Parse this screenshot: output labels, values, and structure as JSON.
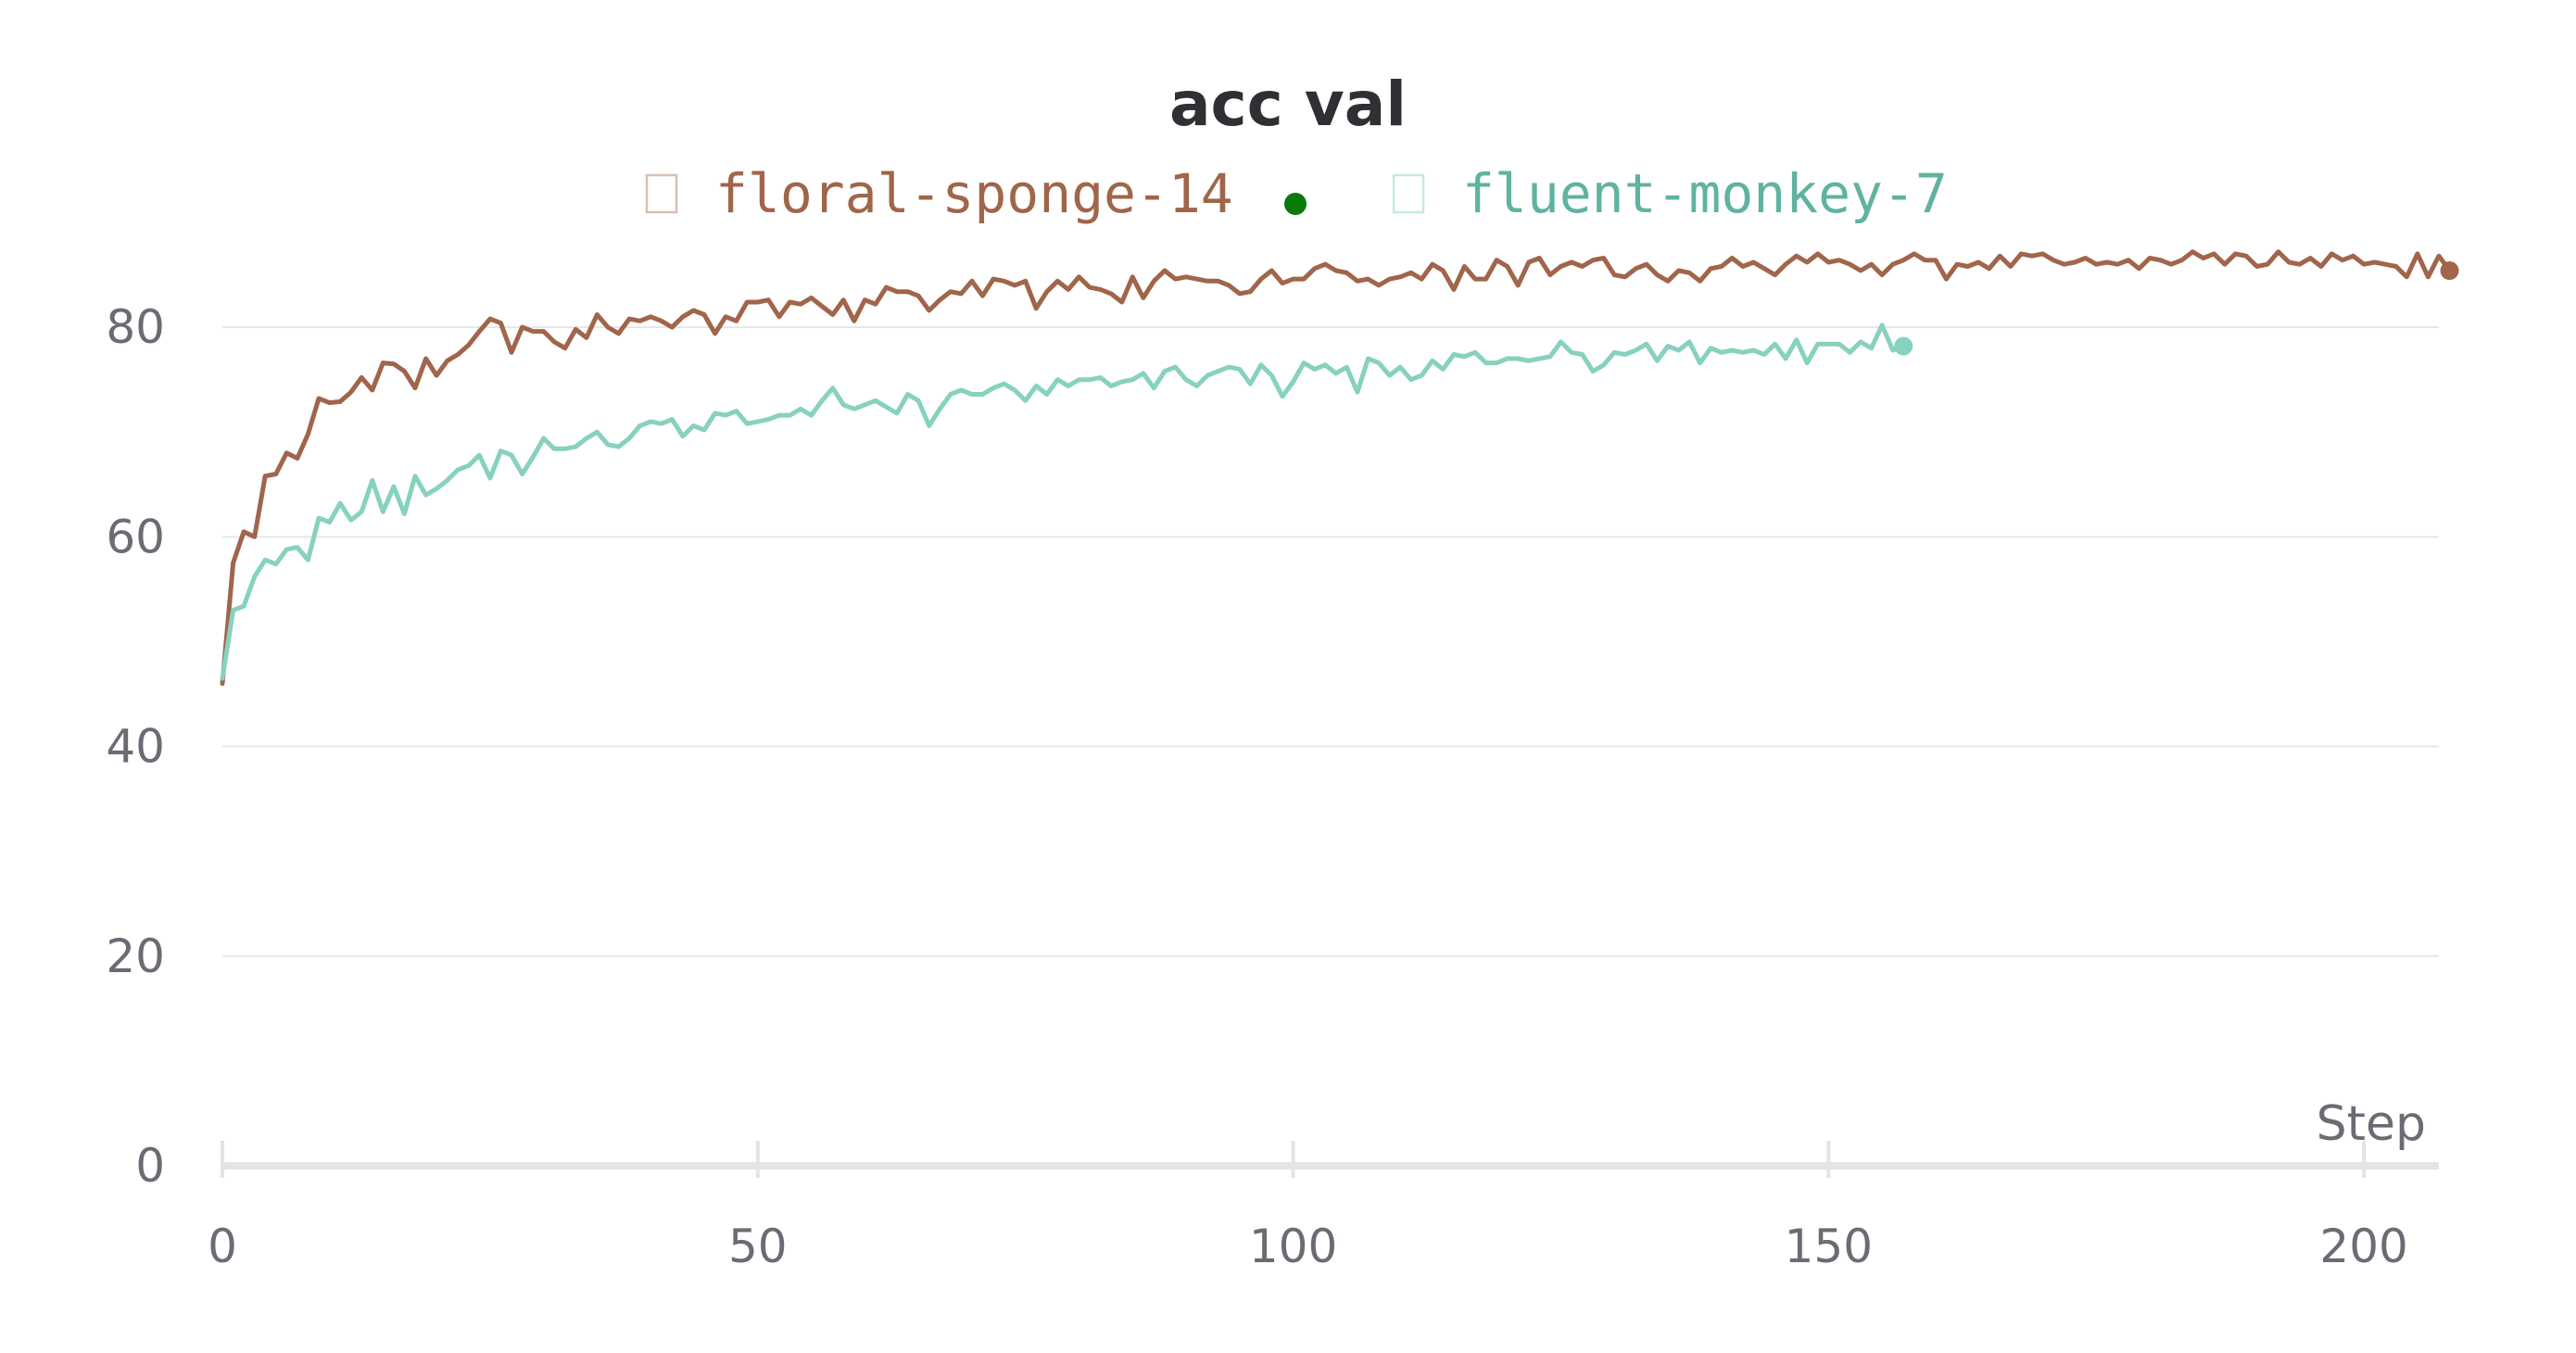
{
  "chart_data": {
    "type": "line",
    "title": "acc val",
    "xlabel": "Step",
    "ylabel": "",
    "xlim": [
      0,
      207
    ],
    "ylim": [
      0,
      90
    ],
    "xticks": [
      0,
      50,
      100,
      150,
      200
    ],
    "yticks": [
      0,
      20,
      40,
      60,
      80
    ],
    "grid": true,
    "legend_position": "top-center",
    "series": [
      {
        "name": "floral-sponge-14",
        "color": "#a0654a",
        "marker_color": "#0a7a0a",
        "x_start": 0,
        "x_step": 1,
        "values": [
          46.0,
          57.5,
          60.5,
          60.0,
          65.8,
          66.0,
          68.0,
          67.5,
          69.8,
          73.2,
          72.8,
          72.9,
          73.8,
          75.2,
          74.0,
          76.6,
          76.5,
          75.8,
          74.2,
          77.0,
          75.4,
          76.8,
          77.4,
          78.3,
          79.6,
          80.8,
          80.4,
          77.6,
          80.0,
          79.6,
          79.6,
          78.6,
          78.0,
          79.8,
          79.0,
          81.2,
          80.0,
          79.4,
          80.8,
          80.6,
          81.0,
          80.6,
          80.0,
          81.0,
          81.6,
          81.2,
          79.4,
          81.0,
          80.6,
          82.4,
          82.4,
          82.6,
          81.0,
          82.4,
          82.2,
          82.8,
          82.0,
          81.2,
          82.6,
          80.6,
          82.6,
          82.2,
          83.8,
          83.4,
          83.4,
          83.0,
          81.6,
          82.6,
          83.4,
          83.2,
          84.4,
          83.0,
          84.6,
          84.4,
          84.0,
          84.4,
          81.8,
          83.4,
          84.4,
          83.6,
          84.8,
          83.8,
          83.6,
          83.2,
          82.4,
          84.8,
          82.8,
          84.4,
          85.4,
          84.6,
          84.8,
          84.6,
          84.4,
          84.4,
          84.0,
          83.2,
          83.4,
          84.6,
          85.4,
          84.2,
          84.6,
          84.6,
          85.6,
          86.0,
          85.4,
          85.2,
          84.4,
          84.6,
          84.0,
          84.6,
          84.8,
          85.2,
          84.6,
          86.0,
          85.4,
          83.6,
          85.8,
          84.6,
          84.6,
          86.4,
          85.8,
          84.0,
          86.2,
          86.6,
          85.0,
          85.8,
          86.2,
          85.8,
          86.4,
          86.6,
          85.0,
          84.8,
          85.6,
          86.0,
          85.0,
          84.4,
          85.4,
          85.2,
          84.4,
          85.6,
          85.8,
          86.6,
          85.8,
          86.2,
          85.6,
          85.0,
          86.0,
          86.8,
          86.2,
          87.0,
          86.2,
          86.4,
          86.0,
          85.4,
          86.0,
          85.0,
          86.0,
          86.4,
          87.0,
          86.4,
          86.4,
          84.6,
          86.0,
          85.8,
          86.2,
          85.6,
          86.8,
          85.8,
          87.0,
          86.8,
          87.0,
          86.4,
          86.0,
          86.2,
          86.6,
          86.0,
          86.2,
          86.0,
          86.4,
          85.6,
          86.6,
          86.4,
          86.0,
          86.4,
          87.2,
          86.6,
          87.0,
          86.0,
          87.0,
          86.8,
          85.8,
          86.0,
          87.2,
          86.2,
          86.0,
          86.6,
          85.8,
          87.0,
          86.4,
          86.8,
          86.0,
          86.2,
          86.0,
          85.8,
          84.8,
          87.0,
          84.8,
          86.8,
          85.4
        ]
      },
      {
        "name": "fluent-monkey-7",
        "color": "#87d1bf",
        "x_start": 0,
        "x_step": 1,
        "values": [
          46.5,
          53.0,
          53.4,
          56.2,
          57.8,
          57.4,
          58.8,
          59.0,
          57.8,
          61.8,
          61.4,
          63.2,
          61.6,
          62.4,
          65.4,
          62.4,
          64.8,
          62.2,
          65.8,
          64.0,
          64.6,
          65.4,
          66.4,
          66.8,
          67.8,
          65.6,
          68.2,
          67.8,
          66.0,
          67.6,
          69.4,
          68.4,
          68.4,
          68.6,
          69.4,
          70.0,
          68.8,
          68.6,
          69.4,
          70.6,
          71.0,
          70.8,
          71.2,
          69.6,
          70.6,
          70.2,
          71.8,
          71.6,
          72.0,
          70.8,
          71.0,
          71.2,
          71.6,
          71.6,
          72.2,
          71.6,
          73.0,
          74.2,
          72.6,
          72.2,
          72.6,
          73.0,
          72.4,
          71.8,
          73.6,
          73.0,
          70.6,
          72.2,
          73.6,
          74.0,
          73.6,
          73.6,
          74.2,
          74.6,
          74.0,
          73.0,
          74.4,
          73.6,
          75.0,
          74.4,
          75.0,
          75.0,
          75.2,
          74.4,
          74.8,
          75.0,
          75.6,
          74.2,
          75.8,
          76.2,
          75.0,
          74.4,
          75.4,
          75.8,
          76.2,
          76.0,
          74.6,
          76.4,
          75.4,
          73.4,
          74.8,
          76.6,
          76.0,
          76.4,
          75.6,
          76.2,
          73.8,
          77.0,
          76.6,
          75.4,
          76.2,
          75.0,
          75.4,
          76.8,
          76.0,
          77.4,
          77.2,
          77.6,
          76.6,
          76.6,
          77.0,
          77.0,
          76.8,
          77.0,
          77.2,
          78.6,
          77.6,
          77.4,
          75.8,
          76.4,
          77.6,
          77.4,
          77.8,
          78.4,
          76.8,
          78.2,
          77.8,
          78.6,
          76.6,
          78.0,
          77.6,
          77.8,
          77.6,
          77.8,
          77.4,
          78.4,
          77.0,
          78.8,
          76.6,
          78.4,
          78.4,
          78.4,
          77.6,
          78.6,
          78.0,
          80.2,
          77.8,
          78.2
        ]
      }
    ]
  }
}
